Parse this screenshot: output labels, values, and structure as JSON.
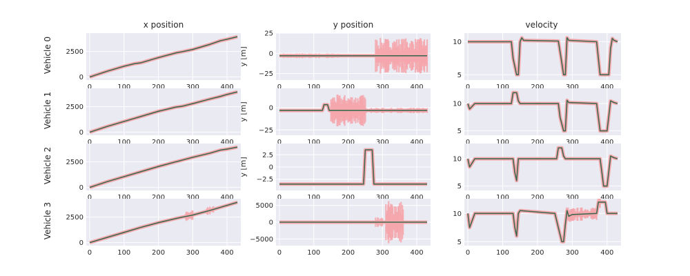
{
  "figure": {
    "columns": [
      "x position",
      "y position",
      "velocity"
    ],
    "rows": [
      "Vehicle 0",
      "Vehicle 1",
      "Vehicle 2",
      "Vehicle 3"
    ],
    "y_position_ylabel": "y [m]",
    "colors": {
      "background": "#EAEAF2",
      "grid": "#ffffff",
      "estimate_band": "#F4A6AB",
      "estimate_line": "#3B7A57",
      "truth_line": "#4a4a4a"
    }
  },
  "chart_data": [
    {
      "type": "line",
      "row": "Vehicle 0",
      "column": "x position",
      "xlim": [
        -10,
        440
      ],
      "ylim": [
        -300,
        4300
      ],
      "xticks": [
        0,
        100,
        200,
        300,
        400
      ],
      "yticks": [
        0,
        2500
      ],
      "series": [
        {
          "x": [
            0,
            50,
            100,
            130,
            150,
            200,
            250,
            270,
            300,
            350,
            380,
            400,
            430
          ],
          "y": [
            0,
            550,
            1050,
            1300,
            1400,
            1900,
            2350,
            2480,
            2700,
            3200,
            3550,
            3700,
            3950
          ]
        }
      ],
      "noise_spikes": []
    },
    {
      "type": "line",
      "row": "Vehicle 0",
      "column": "y position",
      "xlim": [
        -10,
        440
      ],
      "ylim": [
        -33,
        25
      ],
      "xticks": [
        0,
        100,
        200,
        300,
        400
      ],
      "yticks": [
        -25,
        0,
        25
      ],
      "series": [
        {
          "x": [
            0,
            430
          ],
          "y": [
            -3,
            -3
          ]
        }
      ],
      "noise_spikes": [
        {
          "x": [
            10,
            170
          ],
          "amp": 3
        },
        {
          "x": [
            280,
            430
          ],
          "amp": 22
        }
      ]
    },
    {
      "type": "line",
      "row": "Vehicle 0",
      "column": "velocity",
      "xlim": [
        -10,
        440
      ],
      "ylim": [
        4.2,
        11.3
      ],
      "xticks": [
        0,
        100,
        200,
        300,
        400
      ],
      "yticks": [
        5,
        10
      ],
      "series": [
        {
          "x": [
            0,
            10,
            125,
            130,
            140,
            145,
            150,
            155,
            160,
            260,
            268,
            275,
            280,
            285,
            290,
            370,
            375,
            380,
            385,
            395,
            405,
            410,
            415,
            420,
            430
          ],
          "y": [
            10,
            10,
            10,
            7.5,
            5,
            5,
            10,
            10.6,
            10.2,
            10.1,
            7.5,
            5,
            5,
            10.6,
            10.2,
            10,
            7.5,
            5,
            5,
            5,
            5,
            9,
            10.5,
            10.2,
            10
          ]
        }
      ],
      "noise_spikes": []
    },
    {
      "type": "line",
      "row": "Vehicle 1",
      "column": "x position",
      "xlim": [
        -10,
        440
      ],
      "ylim": [
        -300,
        4300
      ],
      "xticks": [
        0,
        100,
        200,
        300,
        400
      ],
      "yticks": [
        0,
        2500
      ],
      "series": [
        {
          "x": [
            0,
            50,
            100,
            130,
            150,
            200,
            250,
            270,
            300,
            350,
            380,
            400,
            430
          ],
          "y": [
            0,
            550,
            1050,
            1350,
            1550,
            2050,
            2450,
            2550,
            2800,
            3250,
            3500,
            3700,
            3950
          ]
        }
      ],
      "noise_spikes": []
    },
    {
      "type": "line",
      "row": "Vehicle 1",
      "column": "y position",
      "xlim": [
        -10,
        440
      ],
      "ylim": [
        -31,
        22
      ],
      "xticks": [
        0,
        100,
        200,
        300,
        400
      ],
      "yticks": [
        -25,
        0
      ],
      "series": [
        {
          "x": [
            0,
            125,
            130,
            140,
            145,
            430
          ],
          "y": [
            -3,
            -3,
            3.5,
            3.5,
            -3,
            -3
          ]
        }
      ],
      "noise_spikes": [
        {
          "x": [
            150,
            250
          ],
          "amp": 18
        },
        {
          "x": [
            250,
            430
          ],
          "amp": 3
        }
      ]
    },
    {
      "type": "line",
      "row": "Vehicle 1",
      "column": "velocity",
      "xlim": [
        -10,
        440
      ],
      "ylim": [
        4.2,
        12.8
      ],
      "xticks": [
        0,
        100,
        200,
        300,
        400
      ],
      "yticks": [
        5,
        10
      ],
      "series": [
        {
          "x": [
            0,
            5,
            20,
            125,
            130,
            140,
            145,
            150,
            260,
            265,
            275,
            280,
            285,
            290,
            370,
            375,
            380,
            385,
            395,
            400,
            410,
            420,
            430
          ],
          "y": [
            10,
            9,
            10,
            10,
            12,
            12,
            10.5,
            10,
            10,
            7.5,
            5,
            5,
            10.6,
            10.2,
            10,
            7.5,
            5,
            5,
            5,
            5,
            10.5,
            10.2,
            10
          ]
        }
      ],
      "noise_spikes": []
    },
    {
      "type": "line",
      "row": "Vehicle 2",
      "column": "x position",
      "xlim": [
        -10,
        440
      ],
      "ylim": [
        -300,
        4300
      ],
      "xticks": [
        0,
        100,
        200,
        300,
        400
      ],
      "yticks": [
        0,
        2500
      ],
      "series": [
        {
          "x": [
            0,
            50,
            100,
            150,
            200,
            250,
            300,
            350,
            380,
            400,
            430
          ],
          "y": [
            0,
            550,
            1050,
            1550,
            2050,
            2500,
            2950,
            3350,
            3650,
            3750,
            3950
          ]
        }
      ],
      "noise_spikes": []
    },
    {
      "type": "line",
      "row": "Vehicle 2",
      "column": "y position",
      "xlim": [
        -10,
        440
      ],
      "ylim": [
        -4.8,
        4.8
      ],
      "xticks": [
        0,
        100,
        200,
        300,
        400
      ],
      "yticks": [
        -2.5,
        0,
        2.5
      ],
      "series": [
        {
          "x": [
            0,
            245,
            250,
            270,
            275,
            430
          ],
          "y": [
            -3.5,
            -3.5,
            3.5,
            3.5,
            -3.5,
            -3.5
          ]
        }
      ],
      "noise_spikes": []
    },
    {
      "type": "line",
      "row": "Vehicle 2",
      "column": "velocity",
      "xlim": [
        -10,
        440
      ],
      "ylim": [
        4.2,
        12.8
      ],
      "xticks": [
        0,
        100,
        200,
        300,
        400
      ],
      "yticks": [
        5,
        10
      ],
      "series": [
        {
          "x": [
            0,
            5,
            20,
            130,
            135,
            140,
            145,
            150,
            255,
            260,
            270,
            275,
            280,
            380,
            385,
            390,
            400,
            410,
            420,
            430
          ],
          "y": [
            10,
            8.5,
            10,
            10,
            7.5,
            6,
            10,
            10,
            10,
            12,
            12,
            10.5,
            10,
            10,
            7.5,
            5,
            5,
            10.5,
            10.2,
            10
          ]
        }
      ],
      "noise_spikes": []
    },
    {
      "type": "line",
      "row": "Vehicle 3",
      "column": "x position",
      "xlim": [
        -10,
        440
      ],
      "ylim": [
        -300,
        4300
      ],
      "xticks": [
        0,
        100,
        200,
        300,
        400
      ],
      "yticks": [
        0,
        2500
      ],
      "series": [
        {
          "x": [
            0,
            50,
            100,
            150,
            200,
            250,
            270,
            300,
            350,
            400,
            430
          ],
          "y": [
            0,
            500,
            1000,
            1500,
            1950,
            2350,
            2500,
            2700,
            3150,
            3650,
            3950
          ]
        }
      ],
      "noise_spikes": [
        {
          "x": [
            280,
            300
          ],
          "amp": 500
        },
        {
          "x": [
            340,
            360
          ],
          "amp": 400
        }
      ]
    },
    {
      "type": "line",
      "row": "Vehicle 3",
      "column": "y position",
      "xlim": [
        -10,
        440
      ],
      "ylim": [
        -7000,
        7000
      ],
      "xticks": [
        0,
        100,
        200,
        300,
        400
      ],
      "yticks": [
        -5000,
        0,
        5000
      ],
      "series": [
        {
          "x": [
            0,
            430
          ],
          "y": [
            0,
            0
          ]
        }
      ],
      "noise_spikes": [
        {
          "x": [
            280,
            300
          ],
          "amp": 1500
        },
        {
          "x": [
            310,
            360
          ],
          "amp": 6500
        }
      ]
    },
    {
      "type": "line",
      "row": "Vehicle 3",
      "column": "velocity",
      "xlim": [
        -10,
        440
      ],
      "ylim": [
        4.3,
        12.6
      ],
      "xticks": [
        0,
        100,
        200,
        300,
        400
      ],
      "yticks": [
        5,
        10
      ],
      "series": [
        {
          "x": [
            0,
            5,
            20,
            130,
            135,
            140,
            145,
            150,
            250,
            260,
            270,
            275,
            280,
            285,
            290,
            300,
            370,
            375,
            380,
            385,
            395,
            400,
            410,
            430
          ],
          "y": [
            10,
            7.5,
            10,
            10,
            7.5,
            6,
            10,
            10.5,
            10,
            7.5,
            5,
            5,
            8,
            10.5,
            9.5,
            9.8,
            10,
            12,
            12,
            12,
            12,
            10,
            10,
            10
          ]
        }
      ],
      "noise_spikes": [
        {
          "x": [
            280,
            380
          ],
          "amp": 1.2
        }
      ]
    }
  ]
}
